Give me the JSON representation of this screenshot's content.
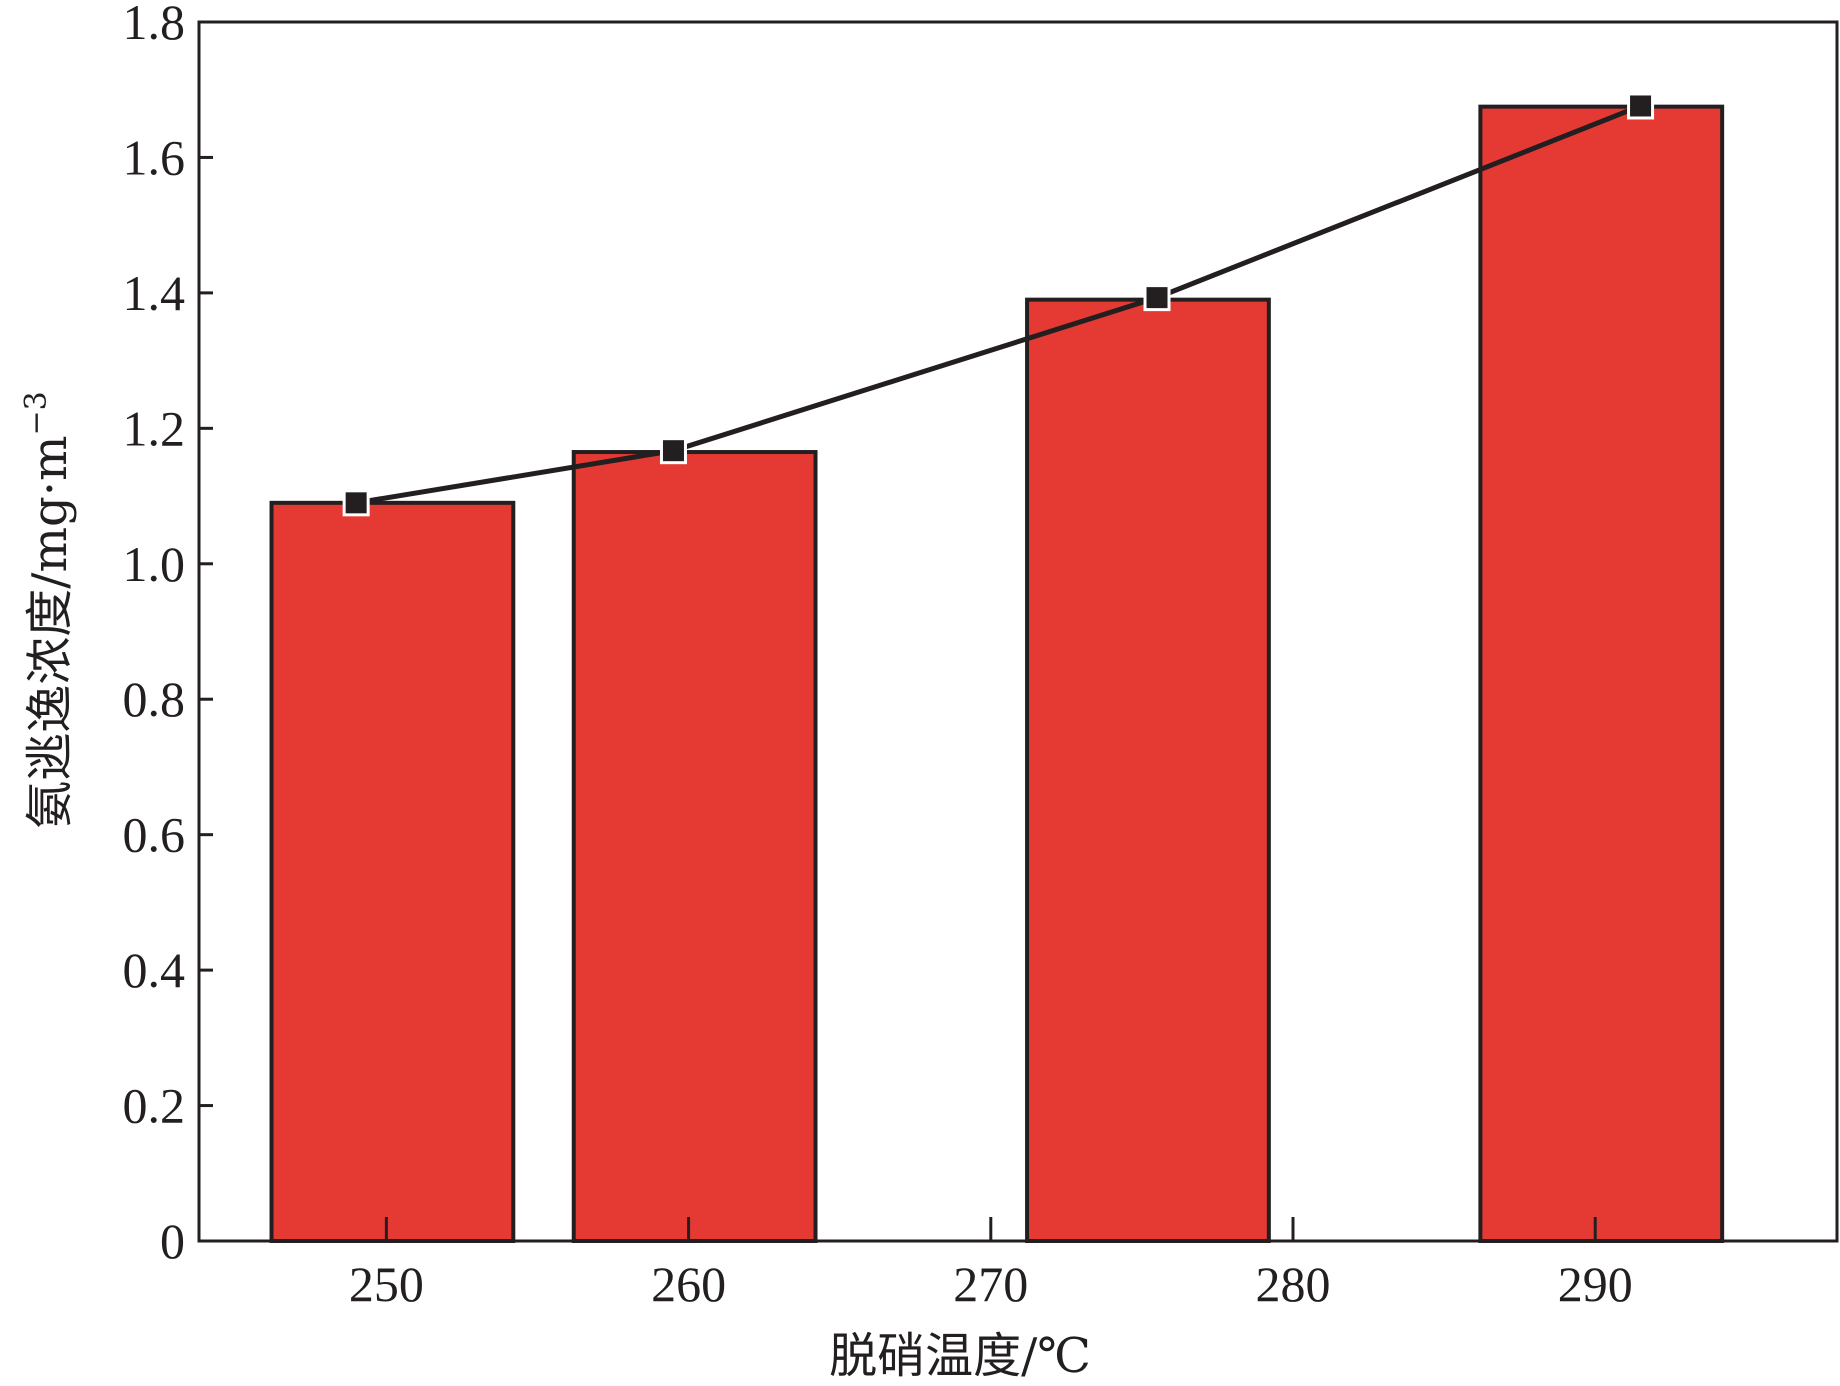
{
  "chart_data": {
    "type": "bar",
    "title": "",
    "xlabel": "脱硝温度/℃",
    "ylabel": "氨逃逸浓度/mg·m",
    "ylabel_superscript": "−3",
    "x_ticks": [
      250,
      260,
      270,
      280,
      290
    ],
    "y_ticks": [
      "0",
      "0.2",
      "0.4",
      "0.6",
      "0.8",
      "1.0",
      "1.2",
      "1.4",
      "1.6",
      "1.8"
    ],
    "xlim": [
      243.8,
      298.0
    ],
    "ylim": [
      0,
      1.8
    ],
    "grid": false,
    "legend": "none",
    "bars": [
      {
        "x_start": 246.2,
        "x_end": 254.2,
        "value": 1.09
      },
      {
        "x_start": 256.2,
        "x_end": 264.2,
        "value": 1.165
      },
      {
        "x_start": 271.2,
        "x_end": 279.2,
        "value": 1.39
      },
      {
        "x_start": 286.2,
        "x_end": 294.2,
        "value": 1.675
      }
    ],
    "line_points": [
      {
        "x": 249,
        "y": 1.09
      },
      {
        "x": 259.5,
        "y": 1.167
      },
      {
        "x": 275.5,
        "y": 1.393
      },
      {
        "x": 291.5,
        "y": 1.676
      }
    ],
    "colors": {
      "bar": "#e53a33",
      "outline": "#231f20",
      "line": "#231f20"
    }
  }
}
